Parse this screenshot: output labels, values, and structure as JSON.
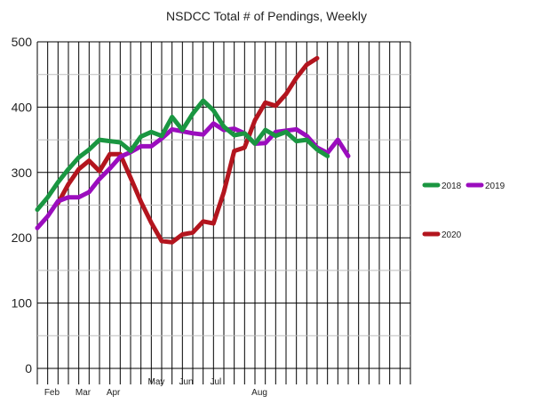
{
  "chart_data": {
    "type": "line",
    "title": "NSDCC Total # of Pendings, Weekly",
    "xlabel": "",
    "ylabel": "",
    "ylim": [
      0,
      500
    ],
    "yticks": [
      0,
      100,
      200,
      300,
      400,
      500
    ],
    "weeks_total": 36,
    "xtick_labels": [
      {
        "label": "Feb",
        "week": 0.5
      },
      {
        "label": "Mar",
        "week": 3.5
      },
      {
        "label": "Apr",
        "week": 6.5
      },
      {
        "label": "May",
        "week": 10.5
      },
      {
        "label": "Jun",
        "week": 13.5
      },
      {
        "label": "Jul",
        "week": 16.5
      },
      {
        "label": "Aug",
        "week": 20.5
      }
    ],
    "grid": true,
    "legend_position": "right",
    "series": [
      {
        "name": "2018",
        "color": "#1a9641",
        "values": [
          243,
          262,
          285,
          305,
          323,
          335,
          350,
          348,
          346,
          333,
          355,
          362,
          356,
          385,
          365,
          390,
          410,
          395,
          370,
          357,
          360,
          344,
          365,
          356,
          362,
          348,
          350,
          335,
          325
        ]
      },
      {
        "name": "2019",
        "color": "#9b0dbe",
        "values": [
          215,
          233,
          256,
          262,
          262,
          270,
          290,
          306,
          324,
          331,
          340,
          340,
          352,
          366,
          363,
          360,
          358,
          375,
          365,
          367,
          360,
          344,
          345,
          362,
          364,
          366,
          356,
          338,
          330,
          350,
          325
        ]
      },
      {
        "name": "2020",
        "color": "#b3151e",
        "values": [
          null,
          null,
          253,
          282,
          305,
          318,
          302,
          328,
          328,
          292,
          255,
          223,
          195,
          193,
          205,
          208,
          225,
          222,
          270,
          333,
          338,
          380,
          407,
          402,
          420,
          445,
          465,
          475
        ]
      }
    ]
  }
}
